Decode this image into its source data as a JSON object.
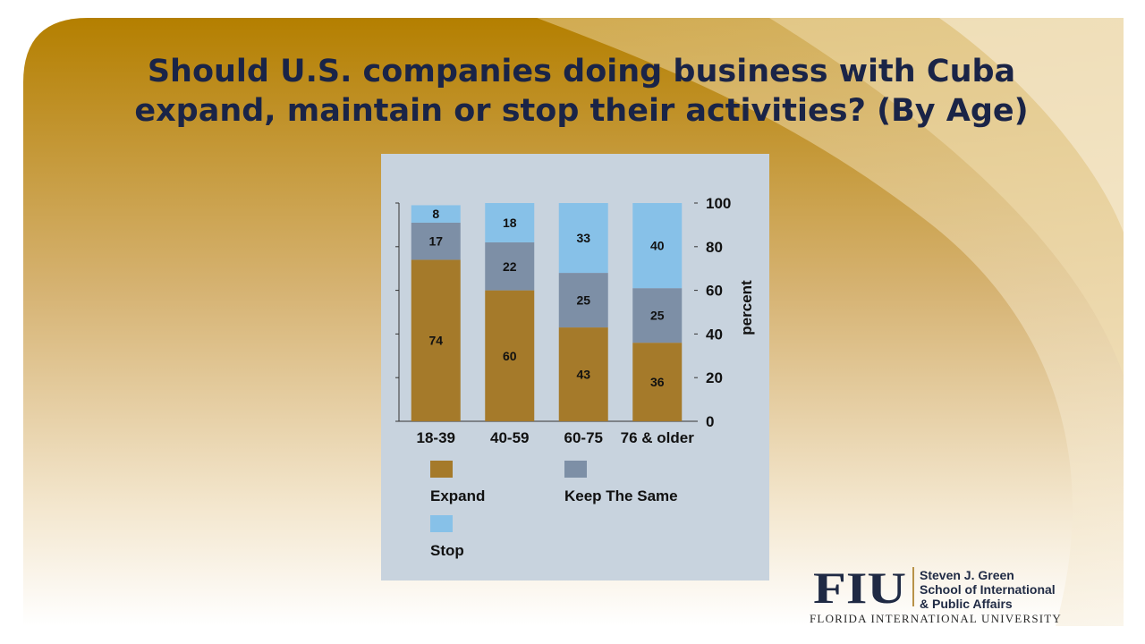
{
  "slide": {
    "title_lines": [
      "Should U.S. companies doing business with Cuba",
      "expand, maintain or stop their activities? (By Age)"
    ]
  },
  "chart_data": {
    "type": "bar",
    "stacked": true,
    "categories": [
      "18-39",
      "40-59",
      "60-75",
      "76 & older"
    ],
    "series": [
      {
        "name": "Expand",
        "values": [
          74,
          60,
          43,
          36
        ],
        "color": "#a57a2a"
      },
      {
        "name": "Keep The Same",
        "values": [
          17,
          22,
          25,
          25
        ],
        "color": "#7d8fa6"
      },
      {
        "name": "Stop",
        "values": [
          8,
          18,
          33,
          40
        ],
        "color": "#87c1e8"
      }
    ],
    "ylabel": "percent",
    "ylim": [
      0,
      100
    ],
    "yticks": [
      0,
      20,
      40,
      60,
      80,
      100
    ],
    "y_axis_side": "right",
    "legend_position": "bottom",
    "grid": false
  },
  "logo": {
    "mark": "FIU",
    "lines": [
      "Steven J. Green",
      "School of International",
      "& Public Affairs"
    ],
    "university": "FLORIDA INTERNATIONAL UNIVERSITY",
    "colors": {
      "mark": "#1f2a44",
      "accent": "#b89248"
    }
  },
  "colors": {
    "title": "#1a2447",
    "panel": "#c8d3de",
    "gold": "#b88a1c"
  }
}
